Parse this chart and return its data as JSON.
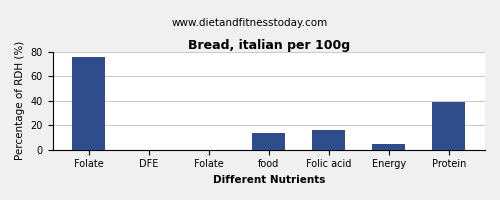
{
  "title": "Bread, italian per 100g",
  "subtitle": "www.dietandfitnesstoday.com",
  "xlabel": "Different Nutrients",
  "ylabel": "Percentage of RDH (%)",
  "categories": [
    "Folate",
    "DFE",
    "Folate",
    "food",
    "Folic acid",
    "Energy",
    "Protein"
  ],
  "values": [
    76,
    0,
    0,
    14,
    16,
    5,
    39
  ],
  "bar_color": "#2e4d8a",
  "ylim": [
    0,
    80
  ],
  "yticks": [
    0,
    20,
    40,
    60,
    80
  ],
  "background_color": "#f0f0f0",
  "plot_bg_color": "#ffffff",
  "title_fontsize": 9,
  "subtitle_fontsize": 7.5,
  "axis_label_fontsize": 7.5,
  "tick_fontsize": 7
}
